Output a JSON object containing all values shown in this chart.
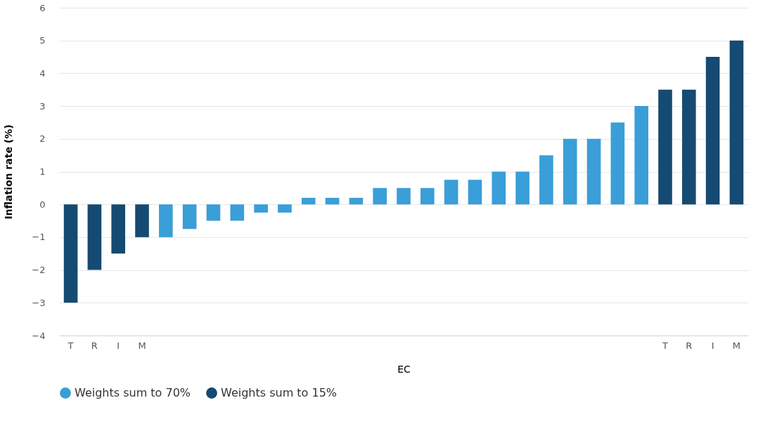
{
  "chart_data": {
    "type": "bar",
    "xlabel": "EC",
    "ylabel": "Inflation rate (%)",
    "categories": [
      "T",
      "R",
      "I",
      "M",
      null,
      null,
      null,
      null,
      null,
      null,
      null,
      null,
      null,
      null,
      null,
      null,
      null,
      null,
      null,
      null,
      null,
      null,
      null,
      null,
      null,
      "T",
      "R",
      "I",
      "M"
    ],
    "series": [
      {
        "name": "Weights sum to 70%",
        "color": "#3a9ed8",
        "values": [
          null,
          null,
          null,
          null,
          -1,
          -0.75,
          -0.5,
          -0.5,
          -0.25,
          -0.25,
          0.2,
          0.2,
          0.2,
          0.5,
          0.5,
          0.5,
          0.75,
          0.75,
          1,
          1,
          1.5,
          2,
          2,
          2.5,
          3,
          null,
          null,
          null,
          null
        ]
      },
      {
        "name": "Weights sum to 15%",
        "color": "#154a72",
        "values": [
          -3,
          -2,
          -1.5,
          -1,
          null,
          null,
          null,
          null,
          null,
          null,
          null,
          null,
          null,
          null,
          null,
          null,
          null,
          null,
          null,
          null,
          null,
          null,
          null,
          null,
          null,
          3.5,
          3.5,
          4.5,
          5
        ]
      }
    ],
    "ylim": [
      -4,
      6
    ],
    "yticks": [
      -4,
      -3,
      -2,
      -1,
      0,
      1,
      2,
      3,
      4,
      5,
      6
    ],
    "grid": "y",
    "legend": "bottom"
  }
}
